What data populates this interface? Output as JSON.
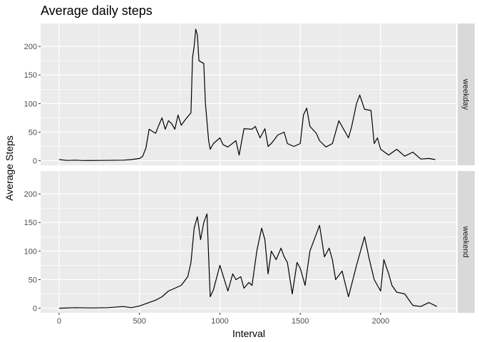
{
  "chart_data": {
    "type": "line",
    "title": "Average daily steps",
    "xlabel": "Interval",
    "ylabel": "Average Steps",
    "xlim": [
      -115,
      2470
    ],
    "ylim": [
      -8,
      240
    ],
    "x_ticks": [
      0,
      500,
      1000,
      1500,
      2000
    ],
    "y_ticks": [
      0,
      50,
      100,
      150,
      200
    ],
    "x_tick_labels": [
      "0",
      "500",
      "1000",
      "1500",
      "2000"
    ],
    "y_tick_labels": [
      "0",
      "50",
      "100",
      "150",
      "200"
    ],
    "grid": true,
    "facets": [
      {
        "name": "weekday",
        "points": [
          [
            0,
            2
          ],
          [
            50,
            0.5
          ],
          [
            100,
            1
          ],
          [
            150,
            0.3
          ],
          [
            250,
            0.5
          ],
          [
            400,
            1
          ],
          [
            450,
            2
          ],
          [
            500,
            4
          ],
          [
            520,
            8
          ],
          [
            540,
            22
          ],
          [
            560,
            55
          ],
          [
            600,
            48
          ],
          [
            620,
            62
          ],
          [
            640,
            75
          ],
          [
            660,
            55
          ],
          [
            680,
            70
          ],
          [
            700,
            65
          ],
          [
            720,
            55
          ],
          [
            740,
            80
          ],
          [
            760,
            62
          ],
          [
            780,
            70
          ],
          [
            800,
            77
          ],
          [
            820,
            84
          ],
          [
            830,
            180
          ],
          [
            840,
            200
          ],
          [
            850,
            230
          ],
          [
            860,
            220
          ],
          [
            870,
            175
          ],
          [
            900,
            170
          ],
          [
            910,
            100
          ],
          [
            930,
            35
          ],
          [
            940,
            20
          ],
          [
            960,
            30
          ],
          [
            1000,
            40
          ],
          [
            1020,
            28
          ],
          [
            1050,
            24
          ],
          [
            1100,
            35
          ],
          [
            1120,
            10
          ],
          [
            1150,
            56
          ],
          [
            1200,
            55
          ],
          [
            1220,
            60
          ],
          [
            1250,
            40
          ],
          [
            1280,
            56
          ],
          [
            1300,
            25
          ],
          [
            1320,
            30
          ],
          [
            1360,
            45
          ],
          [
            1400,
            50
          ],
          [
            1420,
            30
          ],
          [
            1460,
            25
          ],
          [
            1500,
            30
          ],
          [
            1520,
            80
          ],
          [
            1540,
            92
          ],
          [
            1560,
            60
          ],
          [
            1600,
            48
          ],
          [
            1620,
            35
          ],
          [
            1660,
            24
          ],
          [
            1700,
            30
          ],
          [
            1740,
            70
          ],
          [
            1800,
            40
          ],
          [
            1820,
            60
          ],
          [
            1850,
            100
          ],
          [
            1870,
            115
          ],
          [
            1900,
            90
          ],
          [
            1940,
            88
          ],
          [
            1960,
            30
          ],
          [
            1980,
            40
          ],
          [
            2000,
            20
          ],
          [
            2050,
            10
          ],
          [
            2100,
            20
          ],
          [
            2150,
            8
          ],
          [
            2200,
            15
          ],
          [
            2250,
            3
          ],
          [
            2300,
            4
          ],
          [
            2340,
            2
          ]
        ]
      },
      {
        "name": "weekend",
        "points": [
          [
            0,
            0
          ],
          [
            100,
            1
          ],
          [
            200,
            0.5
          ],
          [
            300,
            1
          ],
          [
            400,
            3
          ],
          [
            450,
            1
          ],
          [
            500,
            4
          ],
          [
            540,
            8
          ],
          [
            600,
            14
          ],
          [
            640,
            20
          ],
          [
            680,
            30
          ],
          [
            720,
            35
          ],
          [
            760,
            40
          ],
          [
            800,
            55
          ],
          [
            820,
            80
          ],
          [
            840,
            140
          ],
          [
            860,
            160
          ],
          [
            880,
            120
          ],
          [
            900,
            150
          ],
          [
            920,
            165
          ],
          [
            940,
            20
          ],
          [
            960,
            32
          ],
          [
            1000,
            75
          ],
          [
            1050,
            30
          ],
          [
            1080,
            60
          ],
          [
            1100,
            50
          ],
          [
            1130,
            55
          ],
          [
            1150,
            35
          ],
          [
            1180,
            45
          ],
          [
            1200,
            40
          ],
          [
            1230,
            100
          ],
          [
            1260,
            140
          ],
          [
            1280,
            120
          ],
          [
            1300,
            60
          ],
          [
            1320,
            100
          ],
          [
            1350,
            85
          ],
          [
            1380,
            105
          ],
          [
            1400,
            90
          ],
          [
            1420,
            80
          ],
          [
            1450,
            25
          ],
          [
            1480,
            80
          ],
          [
            1500,
            70
          ],
          [
            1530,
            40
          ],
          [
            1560,
            100
          ],
          [
            1600,
            130
          ],
          [
            1620,
            145
          ],
          [
            1650,
            90
          ],
          [
            1680,
            105
          ],
          [
            1700,
            85
          ],
          [
            1720,
            50
          ],
          [
            1760,
            65
          ],
          [
            1800,
            20
          ],
          [
            1850,
            75
          ],
          [
            1900,
            125
          ],
          [
            1930,
            85
          ],
          [
            1960,
            50
          ],
          [
            2000,
            30
          ],
          [
            2020,
            85
          ],
          [
            2050,
            60
          ],
          [
            2070,
            40
          ],
          [
            2100,
            28
          ],
          [
            2150,
            25
          ],
          [
            2200,
            5
          ],
          [
            2250,
            3
          ],
          [
            2300,
            10
          ],
          [
            2350,
            3
          ]
        ]
      }
    ]
  }
}
